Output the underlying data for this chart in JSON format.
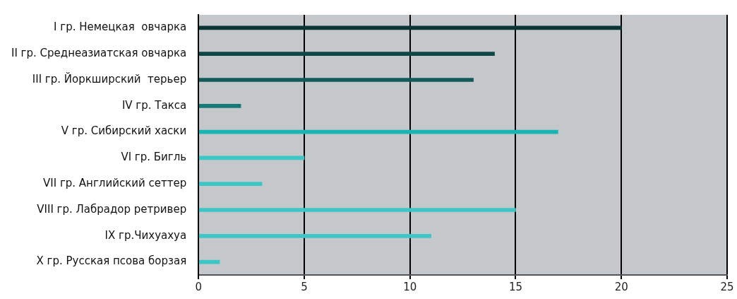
{
  "chart_data": {
    "type": "bar",
    "orientation": "horizontal",
    "categories": [
      "I гр. Немецкая  овчарка",
      "II гр. Среднеазиатская овчарка",
      "III гр. Йоркширский  терьер",
      "IV гр. Такса",
      "V гр. Сибирский хаски",
      "VI гр. Бигль",
      "VII гр. Английский сеттер",
      "VIII гр. Лабрадор ретривер",
      "IX гр.Чихуахуа",
      "X гр. Русская псова борзая"
    ],
    "values": [
      20,
      14,
      13,
      2,
      17,
      5,
      3,
      15,
      11,
      1
    ],
    "colors": [
      "#0b3434",
      "#0f4646",
      "#135a5a",
      "#177878",
      "#1ab4b4",
      "#3ec6c6",
      "#3ec6c6",
      "#3ec6c6",
      "#3ec6c6",
      "#3ec6c6"
    ],
    "xlim": [
      0,
      25
    ],
    "xticks": [
      0,
      5,
      10,
      15,
      20,
      25
    ],
    "grid": "x",
    "legend": false
  }
}
